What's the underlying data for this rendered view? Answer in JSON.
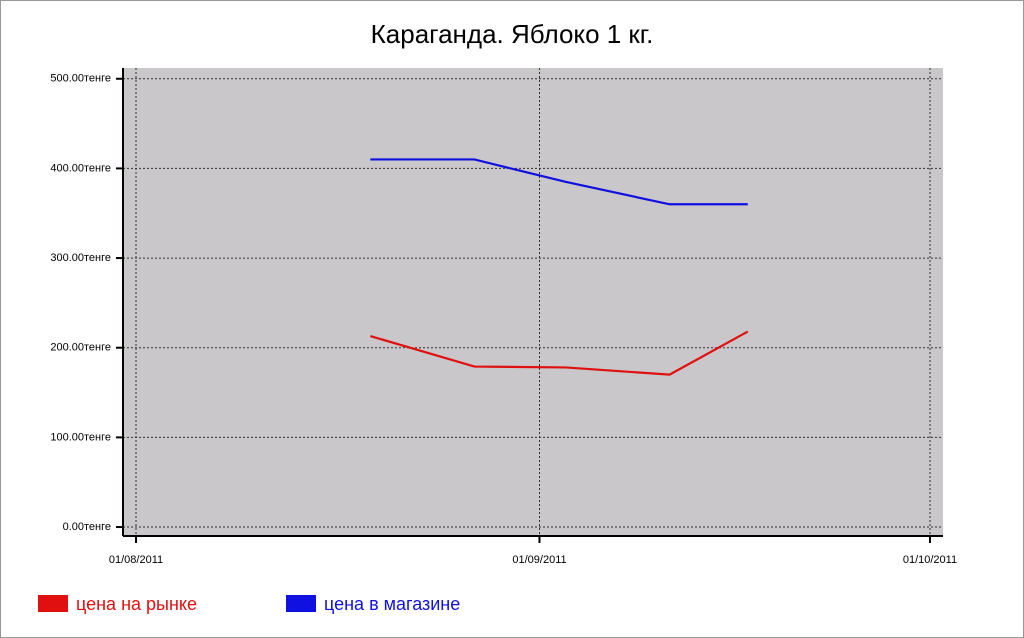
{
  "chart_data": {
    "type": "line",
    "title": "Караганда. Яблоко 1 кг.",
    "x": [
      "2011-08-19",
      "2011-08-27",
      "2011-09-03",
      "2011-09-11",
      "2011-09-17"
    ],
    "series": [
      {
        "name": "цена на рынке",
        "color": "#e01010",
        "values": [
          213,
          179,
          178,
          170,
          218
        ]
      },
      {
        "name": "цена в магазине",
        "color": "#1010e0",
        "values": [
          410,
          410,
          385,
          360,
          360
        ]
      }
    ],
    "xlim": [
      "2011-07-31",
      "2011-10-02"
    ],
    "xticks": [
      {
        "value": "2011-08-01",
        "label": "01/08/2011"
      },
      {
        "value": "2011-09-01",
        "label": "01/09/2011"
      },
      {
        "value": "2011-10-01",
        "label": "01/10/2011"
      }
    ],
    "ylim": [
      -10,
      512
    ],
    "yticks": [
      {
        "value": 0,
        "label": "0.00тенге"
      },
      {
        "value": 100,
        "label": "100.00тенге"
      },
      {
        "value": 200,
        "label": "200.00тенге"
      },
      {
        "value": 300,
        "label": "300.00тенге"
      },
      {
        "value": 400,
        "label": "400.00тенге"
      },
      {
        "value": 500,
        "label": "500.00тенге"
      }
    ],
    "grid": true,
    "plot_background": "#c9c7ca"
  }
}
